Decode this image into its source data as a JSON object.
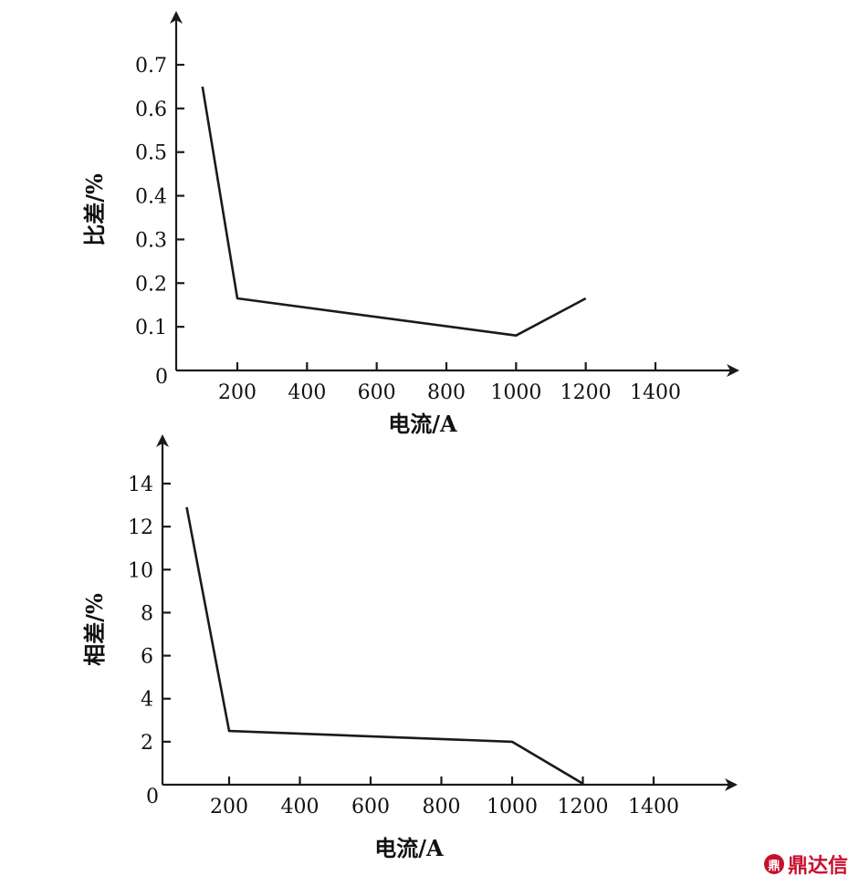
{
  "chart_data": [
    {
      "type": "line",
      "ylabel": "比差/%",
      "xlabel": "电流/A",
      "xlim": [
        100,
        1400
      ],
      "ylim": [
        0,
        0.7
      ],
      "x_ticks": [
        200,
        400,
        600,
        800,
        1000,
        1200,
        1400
      ],
      "y_ticks": [
        0.1,
        0.2,
        0.3,
        0.4,
        0.5,
        0.6,
        0.7
      ],
      "origin_label": "0",
      "series": [
        {
          "x": [
            100,
            200,
            1000,
            1200
          ],
          "y": [
            0.65,
            0.165,
            0.08,
            0.165
          ]
        }
      ]
    },
    {
      "type": "line",
      "ylabel": "相差/%",
      "xlabel": "电流/A",
      "xlim": [
        100,
        1400
      ],
      "ylim": [
        0,
        14
      ],
      "x_ticks": [
        200,
        400,
        600,
        800,
        1000,
        1200,
        1400
      ],
      "y_ticks": [
        2,
        4,
        6,
        8,
        10,
        12,
        14
      ],
      "origin_label": "0",
      "series": [
        {
          "x": [
            80,
            200,
            1000,
            1200
          ],
          "y": [
            12.9,
            2.5,
            2.0,
            0.05
          ]
        }
      ]
    }
  ],
  "watermark": {
    "text": "鼎达信",
    "color": "#c8102e"
  }
}
